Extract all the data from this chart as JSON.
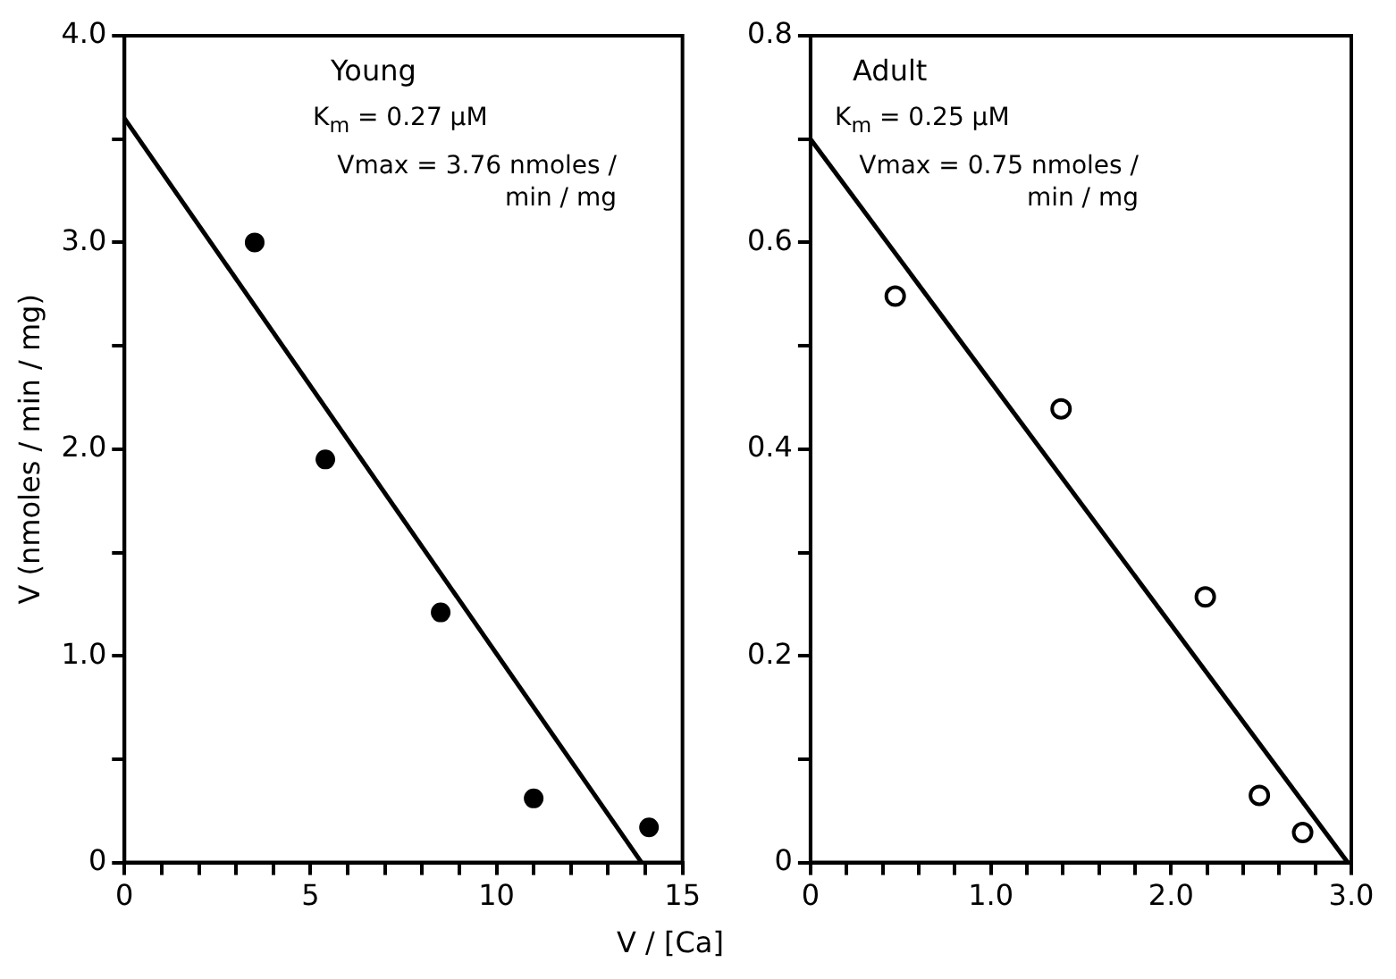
{
  "chart_data": [
    {
      "type": "scatter",
      "xlabel": "V / [Ca]",
      "ylabel": "V (nmoles / min / mg)",
      "annotations": [
        "Young",
        "K$_{m}$ = 0.27 μM",
        "Vmax = 3.76 nmoles / min / mg"
      ],
      "xlim": [
        0,
        15
      ],
      "ylim": [
        0,
        4.0
      ],
      "xticks": [
        0,
        {
          "value": 1,
          "label": null
        },
        {
          "value": 2,
          "label": null
        },
        {
          "value": 3,
          "label": null
        },
        {
          "value": 4,
          "label": null
        },
        5,
        {
          "value": 6,
          "label": null
        },
        {
          "value": 7,
          "label": null
        },
        {
          "value": 8,
          "label": null
        },
        {
          "value": 9,
          "label": null
        },
        10,
        {
          "value": 11,
          "label": null
        },
        {
          "value": 12,
          "label": null
        },
        {
          "value": 13,
          "label": null
        },
        {
          "value": 14,
          "label": null
        },
        15
      ],
      "yticks": [
        0,
        {
          "value": 0.5,
          "label": null
        },
        {
          "value": 1.0,
          "label": "1.0"
        },
        {
          "value": 1.5,
          "label": null
        },
        {
          "value": 2.0,
          "label": "2.0"
        },
        {
          "value": 2.5,
          "label": null
        },
        {
          "value": 3.0,
          "label": "3.0"
        },
        {
          "value": 3.5,
          "label": null
        },
        {
          "value": 4.0,
          "label": "4.0"
        }
      ],
      "grid": false,
      "legend": false,
      "series": [
        {
          "marker": "circle",
          "color": "#000000",
          "x": [
            3.5,
            5.4,
            8.5,
            11.0,
            14.1
          ],
          "values": [
            3.0,
            1.95,
            1.21,
            0.31,
            0.17
          ]
        },
        {
          "type": "line",
          "marker": "none",
          "color": "#000000",
          "x": [
            0,
            13.9
          ],
          "values": [
            3.6,
            0
          ]
        }
      ]
    },
    {
      "type": "scatter",
      "annotations": [
        "Adult",
        "K$_{m}$ = 0.25 μM",
        "Vmax = 0.75 nmoles / min / mg"
      ],
      "xlim": [
        0,
        3.0
      ],
      "ylim": [
        0,
        0.8
      ],
      "xticks": [
        0,
        {
          "value": 0.2,
          "label": null
        },
        {
          "value": 0.4,
          "label": null
        },
        {
          "value": 0.6,
          "label": null
        },
        {
          "value": 0.8,
          "label": null
        },
        {
          "value": 1.0,
          "label": "1.0"
        },
        {
          "value": 1.2,
          "label": null
        },
        {
          "value": 1.4,
          "label": null
        },
        {
          "value": 1.6,
          "label": null
        },
        {
          "value": 1.8,
          "label": null
        },
        {
          "value": 2.0,
          "label": "2.0"
        },
        {
          "value": 2.2,
          "label": null
        },
        {
          "value": 2.4,
          "label": null
        },
        {
          "value": 2.6,
          "label": null
        },
        {
          "value": 2.8,
          "label": null
        },
        {
          "value": 3.0,
          "label": "3.0"
        }
      ],
      "yticks": [
        0,
        {
          "value": 0.1,
          "label": null
        },
        {
          "value": 0.2,
          "label": "0.2"
        },
        {
          "value": 0.3,
          "label": null
        },
        {
          "value": 0.4,
          "label": "0.4"
        },
        {
          "value": 0.5,
          "label": null
        },
        {
          "value": 0.6,
          "label": "0.6"
        },
        {
          "value": 0.7,
          "label": null
        },
        {
          "value": 0.8,
          "label": "0.8"
        }
      ],
      "grid": false,
      "legend": false,
      "series": [
        {
          "marker": "circle",
          "color": "#000000",
          "x": [
            0.47,
            1.39,
            2.19,
            2.49,
            2.73
          ],
          "values": [
            0.548,
            0.439,
            0.257,
            0.065,
            0.029
          ]
        },
        {
          "type": "line",
          "marker": "none",
          "color": "#000000",
          "x": [
            0,
            2.98
          ],
          "values": [
            0.7,
            0
          ]
        }
      ]
    }
  ]
}
